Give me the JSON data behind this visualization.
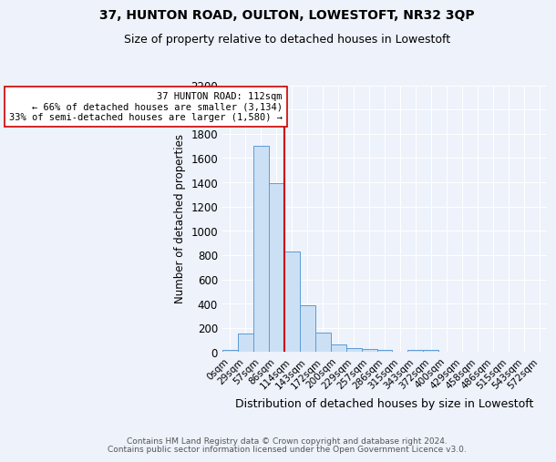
{
  "title_line1": "37, HUNTON ROAD, OULTON, LOWESTOFT, NR32 3QP",
  "title_line2": "Size of property relative to detached houses in Lowestoft",
  "xlabel": "Distribution of detached houses by size in Lowestoft",
  "ylabel": "Number of detached properties",
  "footnote_line1": "Contains HM Land Registry data © Crown copyright and database right 2024.",
  "footnote_line2": "Contains public sector information licensed under the Open Government Licence v3.0.",
  "bar_labels": [
    "0sqm",
    "29sqm",
    "57sqm",
    "86sqm",
    "114sqm",
    "143sqm",
    "172sqm",
    "200sqm",
    "229sqm",
    "257sqm",
    "286sqm",
    "315sqm",
    "343sqm",
    "372sqm",
    "400sqm",
    "429sqm",
    "458sqm",
    "486sqm",
    "515sqm",
    "543sqm",
    "572sqm"
  ],
  "bar_values": [
    15,
    155,
    1700,
    1390,
    830,
    385,
    160,
    65,
    35,
    25,
    20,
    0,
    20,
    15,
    0,
    0,
    0,
    0,
    0,
    0,
    0
  ],
  "bar_color": "#cce0f5",
  "bar_edge_color": "#5b9bd5",
  "vline_index": 4,
  "vline_color": "#cc0000",
  "annotation_title": "37 HUNTON ROAD: 112sqm",
  "annotation_line2": "← 66% of detached houses are smaller (3,134)",
  "annotation_line3": "33% of semi-detached houses are larger (1,580) →",
  "annotation_box_color": "#ffffff",
  "annotation_box_edge_color": "#cc0000",
  "ylim": [
    0,
    2200
  ],
  "yticks": [
    0,
    200,
    400,
    600,
    800,
    1000,
    1200,
    1400,
    1600,
    1800,
    2000,
    2200
  ],
  "bg_color": "#edf2fb",
  "grid_color": "#ffffff",
  "figsize": [
    6.0,
    5.0
  ],
  "dpi": 100
}
